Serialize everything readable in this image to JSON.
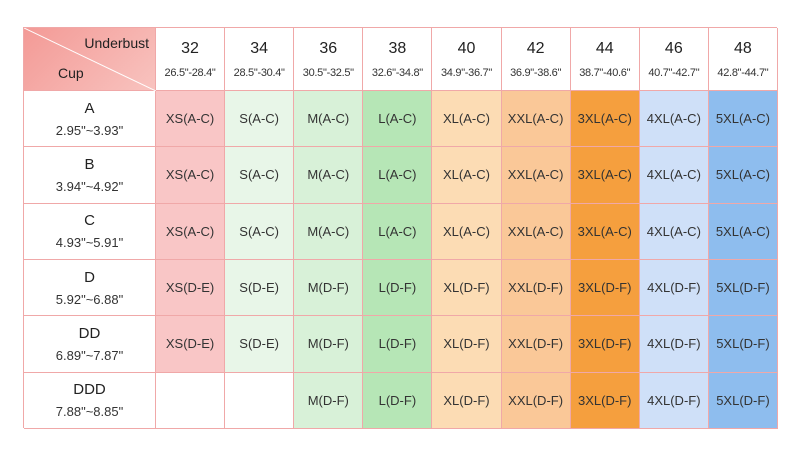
{
  "header": {
    "corner": {
      "top": "Underbust",
      "bottom": "Cup"
    },
    "columns": [
      {
        "size": "32",
        "range": "26.5\"-28.4\""
      },
      {
        "size": "34",
        "range": "28.5\"-30.4\""
      },
      {
        "size": "36",
        "range": "30.5\"-32.5\""
      },
      {
        "size": "38",
        "range": "32.6\"-34.8\""
      },
      {
        "size": "40",
        "range": "34.9\"-36.7\""
      },
      {
        "size": "42",
        "range": "36.9\"-38.6\""
      },
      {
        "size": "44",
        "range": "38.7\"-40.6\""
      },
      {
        "size": "46",
        "range": "40.7\"-42.7\""
      },
      {
        "size": "48",
        "range": "42.8\"-44.7\""
      }
    ]
  },
  "rows": [
    {
      "cup": "A",
      "range": "2.95\"~3.93\"",
      "cells": [
        "XS(A-C)",
        "S(A-C)",
        "M(A-C)",
        "L(A-C)",
        "XL(A-C)",
        "XXL(A-C)",
        "3XL(A-C)",
        "4XL(A-C)",
        "5XL(A-C)"
      ]
    },
    {
      "cup": "B",
      "range": "3.94\"~4.92\"",
      "cells": [
        "XS(A-C)",
        "S(A-C)",
        "M(A-C)",
        "L(A-C)",
        "XL(A-C)",
        "XXL(A-C)",
        "3XL(A-C)",
        "4XL(A-C)",
        "5XL(A-C)"
      ]
    },
    {
      "cup": "C",
      "range": "4.93\"~5.91\"",
      "cells": [
        "XS(A-C)",
        "S(A-C)",
        "M(A-C)",
        "L(A-C)",
        "XL(A-C)",
        "XXL(A-C)",
        "3XL(A-C)",
        "4XL(A-C)",
        "5XL(A-C)"
      ]
    },
    {
      "cup": "D",
      "range": "5.92\"~6.88\"",
      "cells": [
        "XS(D-E)",
        "S(D-E)",
        "M(D-F)",
        "L(D-F)",
        "XL(D-F)",
        "XXL(D-F)",
        "3XL(D-F)",
        "4XL(D-F)",
        "5XL(D-F)"
      ]
    },
    {
      "cup": "DD",
      "range": "6.89\"~7.87\"",
      "cells": [
        "XS(D-E)",
        "S(D-E)",
        "M(D-F)",
        "L(D-F)",
        "XL(D-F)",
        "XXL(D-F)",
        "3XL(D-F)",
        "4XL(D-F)",
        "5XL(D-F)"
      ]
    },
    {
      "cup": "DDD",
      "range": "7.88\"~8.85\"",
      "cells": [
        null,
        null,
        "M(D-F)",
        "L(D-F)",
        "XL(D-F)",
        "XXL(D-F)",
        "3XL(D-F)",
        "4XL(D-F)",
        "5XL(D-F)"
      ]
    }
  ]
}
